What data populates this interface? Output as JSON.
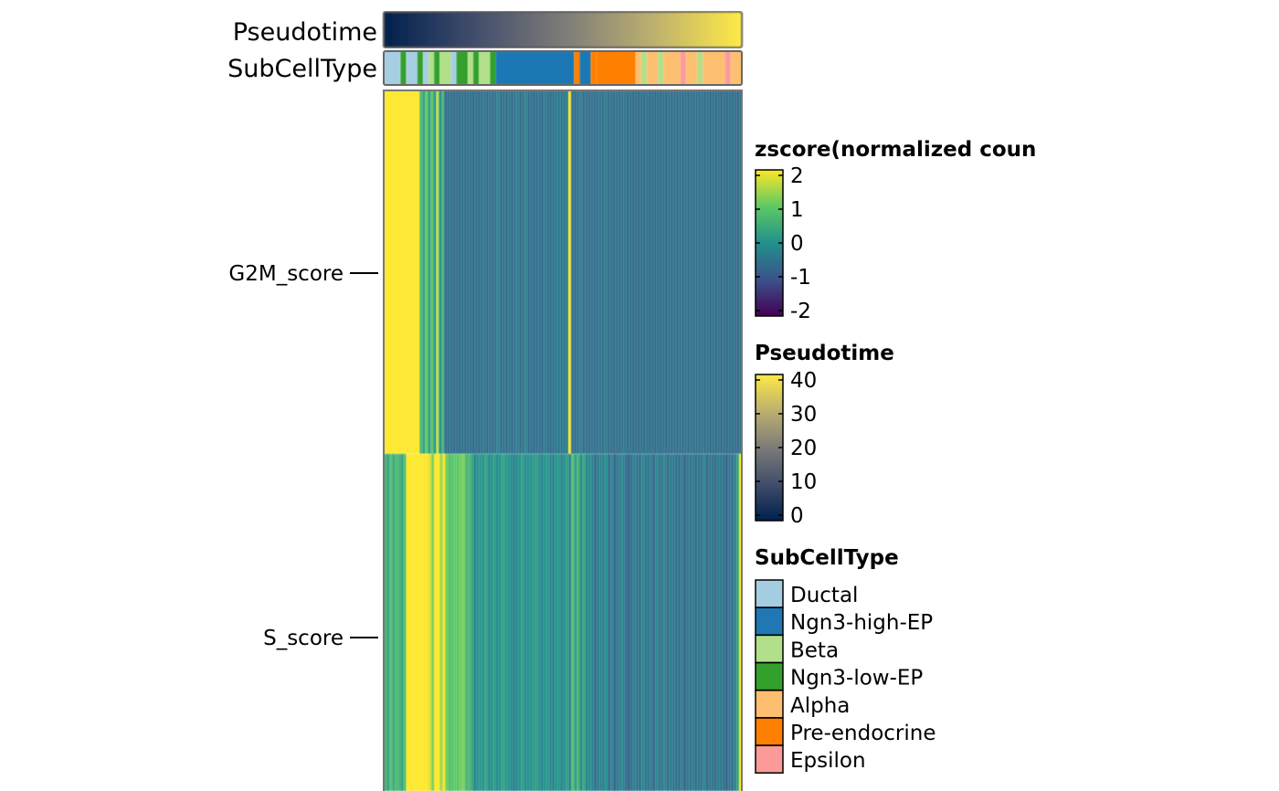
{
  "chart_data": {
    "type": "heatmap",
    "rows": [
      "G2M_score",
      "S_score"
    ],
    "annotations": {
      "pseudotime": {
        "label": "Pseudotime",
        "range": [
          0,
          40
        ],
        "values": [
          0,
          1,
          2,
          3,
          4,
          5,
          6,
          7,
          8,
          9,
          10,
          11,
          12,
          13,
          14,
          15,
          16,
          17,
          18,
          19,
          20,
          21,
          22,
          23,
          24,
          25,
          26,
          27,
          28,
          29,
          30,
          31,
          32,
          33,
          34,
          35,
          36,
          37,
          38,
          39,
          40,
          41
        ]
      },
      "subcelltype": {
        "label": "SubCellType",
        "segments": [
          {
            "type": "Ductal",
            "width": 3
          },
          {
            "type": "Ngn3-low-EP",
            "width": 1
          },
          {
            "type": "Ductal",
            "width": 2
          },
          {
            "type": "Ngn3-low-EP",
            "width": 1
          },
          {
            "type": "Ductal",
            "width": 1
          },
          {
            "type": "Beta",
            "width": 1
          },
          {
            "type": "Ngn3-low-EP",
            "width": 1
          },
          {
            "type": "Beta",
            "width": 2
          },
          {
            "type": "Ductal",
            "width": 1
          },
          {
            "type": "Ngn3-low-EP",
            "width": 2
          },
          {
            "type": "Beta",
            "width": 1
          },
          {
            "type": "Ngn3-low-EP",
            "width": 1
          },
          {
            "type": "Beta",
            "width": 2
          },
          {
            "type": "Ngn3-low-EP",
            "width": 1
          },
          {
            "type": "Ngn3-high-EP",
            "width": 14
          },
          {
            "type": "Pre-endocrine",
            "width": 1
          },
          {
            "type": "Ngn3-high-EP",
            "width": 2
          },
          {
            "type": "Pre-endocrine",
            "width": 1
          },
          {
            "type": "Pre-endocrine",
            "width": 7
          },
          {
            "type": "Alpha",
            "width": 1
          },
          {
            "type": "Beta",
            "width": 1
          },
          {
            "type": "Alpha",
            "width": 2
          },
          {
            "type": "Beta",
            "width": 1
          },
          {
            "type": "Alpha",
            "width": 3
          },
          {
            "type": "Epsilon",
            "width": 1
          },
          {
            "type": "Alpha",
            "width": 2
          },
          {
            "type": "Beta",
            "width": 1
          },
          {
            "type": "Alpha",
            "width": 4
          },
          {
            "type": "Epsilon",
            "width": 1
          },
          {
            "type": "Alpha",
            "width": 2
          }
        ]
      }
    },
    "matrix": {
      "G2M_score": [
        2.2,
        2.2,
        2.2,
        2.2,
        2.2,
        2.2,
        2.2,
        2.2,
        2.2,
        2.2,
        2.2,
        2.2,
        2.2,
        0.7,
        0.3,
        1.0,
        0.2,
        0.9,
        0.1,
        1.6,
        0.0,
        0.6,
        -0.6,
        -0.5,
        -0.5,
        -0.6,
        -0.5,
        -0.6,
        -0.5,
        -0.6,
        -0.5,
        -0.5,
        -0.6,
        -0.5,
        -0.6,
        -0.5,
        -0.4,
        -0.6,
        -0.5,
        -0.6,
        -0.5,
        -0.2,
        -0.6,
        -0.5,
        -0.6,
        -0.4,
        -0.6,
        -0.5,
        -0.3,
        -0.6,
        -0.5,
        -0.2,
        -0.6,
        -0.5,
        -0.6,
        -0.5,
        -0.5,
        -0.6,
        -0.3,
        -0.5,
        -0.6,
        -0.5,
        -0.4,
        -0.4,
        -0.4,
        -0.4,
        -0.4,
        2.0,
        -0.5,
        -0.6,
        -0.5,
        -0.3,
        -0.6,
        -0.5,
        -0.6,
        -0.5,
        -0.6,
        -0.5,
        -0.5,
        -0.6,
        -0.3,
        -0.6,
        -0.5,
        -0.6,
        -0.5,
        -0.6,
        -0.5,
        -0.4,
        -0.6,
        -0.5,
        -0.6,
        -0.5,
        -0.6,
        -0.5,
        -0.6,
        -0.4,
        -0.6,
        -0.5,
        -0.6,
        -0.5,
        -0.6,
        -0.5,
        -0.6,
        -0.5,
        -0.6,
        -0.5,
        -0.6,
        -0.5,
        -0.6,
        -0.5,
        -0.6,
        -0.5,
        -0.6,
        -0.5,
        -0.6,
        -0.5,
        -0.6,
        -0.5,
        -0.6,
        -0.5,
        -0.6,
        -0.5,
        -0.6,
        -0.5,
        -0.6,
        -0.5,
        -0.6,
        -0.5,
        -0.6,
        -0.5
      ],
      "S_score": [
        0.6,
        0.3,
        0.8,
        0.4,
        0.7,
        0.6,
        0.3,
        0.8,
        2.1,
        2.1,
        2.1,
        2.1,
        2.1,
        2.1,
        2.1,
        2.1,
        1.8,
        1.2,
        2.1,
        2.0,
        1.4,
        1.9,
        1.1,
        0.8,
        0.9,
        1.0,
        0.9,
        1.1,
        1.2,
        0.6,
        0.7,
        0.4,
        -0.2,
        0.0,
        0.1,
        0.0,
        0.3,
        -0.1,
        0.0,
        0.2,
        -0.1,
        0.0,
        0.3,
        0.1,
        0.0,
        -0.1,
        -0.3,
        -0.1,
        0.0,
        0.2,
        -0.1,
        0.0,
        0.0,
        0.1,
        0.2,
        0.0,
        -0.2,
        0.0,
        0.1,
        -0.1,
        -0.3,
        0.0,
        0.1,
        -0.2,
        0.0,
        0.2,
        -0.2,
        0.8,
        0.2,
        0.6,
        -0.1,
        0.4,
        -0.2,
        -0.1,
        -0.2,
        -0.6,
        -0.4,
        -0.2,
        -0.3,
        0.0,
        -0.6,
        -0.2,
        -0.8,
        -0.4,
        -0.3,
        -0.2,
        -0.5,
        -0.8,
        -0.5,
        -0.3,
        -0.4,
        -0.6,
        -0.2,
        -0.4,
        -0.5,
        -0.3,
        -0.7,
        -0.2,
        -0.5,
        -0.4,
        -0.2,
        -0.6,
        -0.3,
        -0.4,
        -0.5,
        -0.6,
        -0.3,
        -0.8,
        -0.4,
        -0.5,
        -0.3,
        -0.6,
        -0.4,
        -0.5,
        -0.2,
        -0.7,
        -0.4,
        -0.5,
        -0.6,
        -0.3,
        -0.4,
        -0.5,
        -0.8,
        -0.4,
        -0.6,
        -0.3,
        0.3,
        2.0
      ]
    },
    "legends": [
      {
        "title": "zscore(normalized coun",
        "ticks": [
          "2",
          "1",
          "0",
          "-1",
          "-2"
        ],
        "range": [
          -2,
          2
        ]
      },
      {
        "title": "Pseudotime",
        "ticks": [
          "40",
          "30",
          "20",
          "10",
          "0"
        ],
        "range": [
          0,
          40
        ]
      },
      {
        "title": "SubCellType",
        "items": [
          {
            "label": "Ductal",
            "color": "#a6cee3"
          },
          {
            "label": "Ngn3-high-EP",
            "color": "#1f78b4"
          },
          {
            "label": "Beta",
            "color": "#b2df8a"
          },
          {
            "label": "Ngn3-low-EP",
            "color": "#33a02c"
          },
          {
            "label": "Alpha",
            "color": "#fdbf6f"
          },
          {
            "label": "Pre-endocrine",
            "color": "#ff7f00"
          },
          {
            "label": "Epsilon",
            "color": "#fb9a99"
          }
        ]
      }
    ],
    "colors": {
      "viridis": [
        "#440154",
        "#3b528b",
        "#21908c",
        "#5dc963",
        "#fde725"
      ],
      "cividis": [
        "#00204d",
        "#414d6b",
        "#7c7b78",
        "#bcaf6f",
        "#ffea46"
      ]
    }
  }
}
